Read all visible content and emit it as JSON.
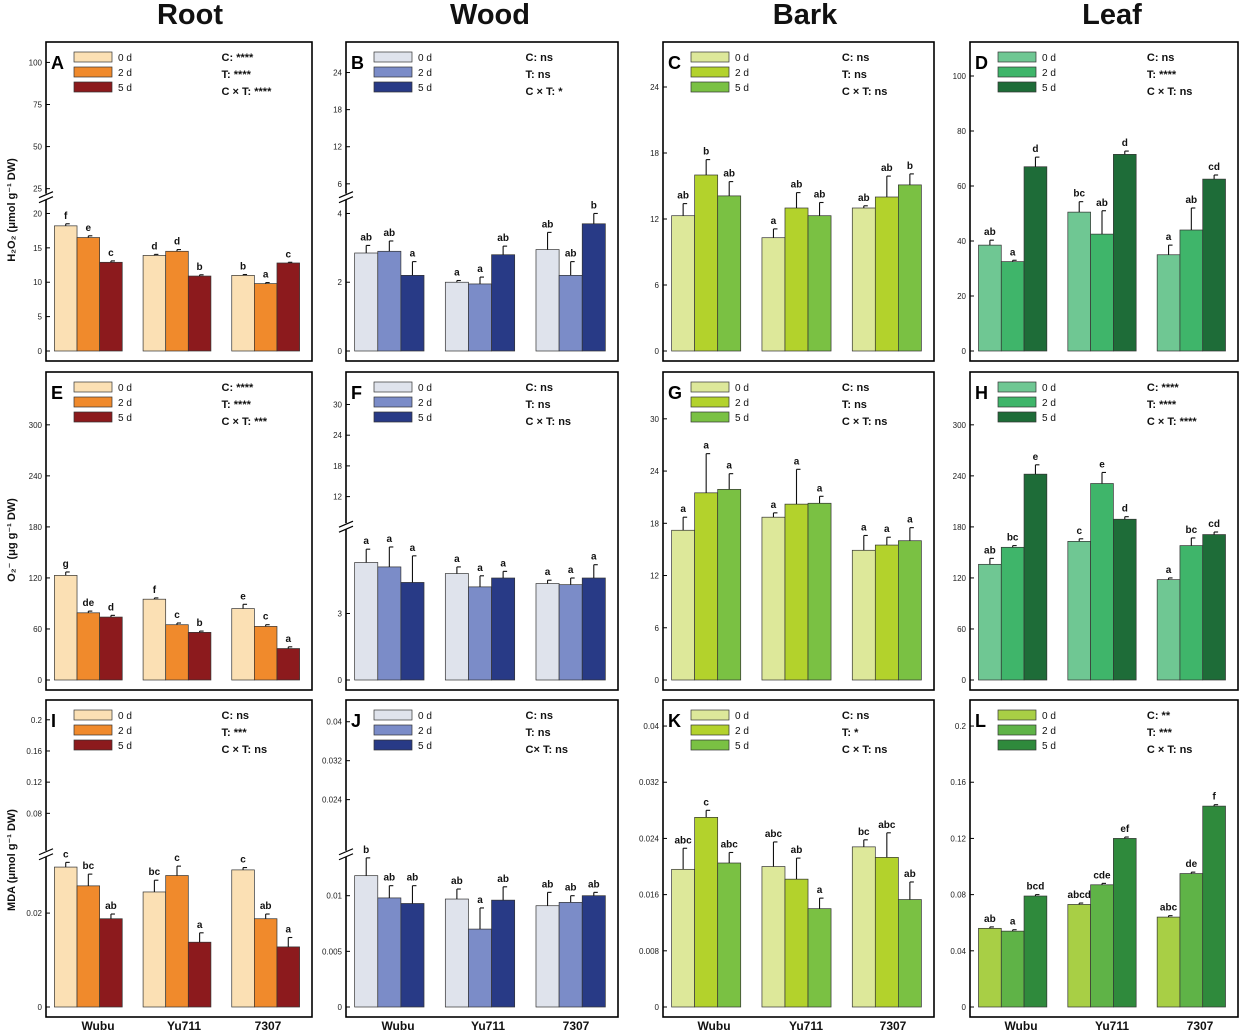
{
  "figure": {
    "column_titles": [
      "Root",
      "Wood",
      "Bark",
      "Leaf"
    ],
    "x_categories": [
      "Wubu",
      "Yu711",
      "7307"
    ],
    "row_ylabels": [
      "H₂O₂ (μmol g⁻¹ DW)",
      "O₂⁻ (μg g⁻¹ DW)",
      "MDA (μmol g⁻¹ DW)"
    ],
    "series_names": [
      "0 d",
      "2 d",
      "5 d"
    ]
  },
  "chart_data": [
    {
      "type": "bar",
      "panel": "A",
      "row": 0,
      "col": 0,
      "categories": [
        "Wubu",
        "Yu711",
        "7307"
      ],
      "series": [
        {
          "name": "0 d",
          "values": [
            18.2,
            13.9,
            11.0
          ],
          "errors": [
            0.3,
            0.15,
            0.12
          ]
        },
        {
          "name": "2 d",
          "values": [
            16.5,
            14.5,
            9.8
          ],
          "errors": [
            0.25,
            0.25,
            0.15
          ]
        },
        {
          "name": "5 d",
          "values": [
            12.9,
            10.9,
            12.8
          ],
          "errors": [
            0.2,
            0.18,
            0.1
          ]
        }
      ],
      "labels": [
        [
          "f",
          "d",
          "b"
        ],
        [
          "e",
          "d",
          "a"
        ],
        [
          "c",
          "b",
          "c"
        ]
      ],
      "stats": [
        "C: ****",
        "T: ****",
        "C × T: ****"
      ],
      "y_break": {
        "low": [
          0,
          22
        ],
        "high": [
          22,
          105
        ],
        "low_ticks": [
          0,
          5,
          10,
          15,
          20
        ],
        "high_ticks": [
          25,
          50,
          75,
          100
        ]
      },
      "colors": [
        "#fbe0b4",
        "#f08a2c",
        "#8c1a1d"
      ]
    },
    {
      "type": "bar",
      "panel": "B",
      "row": 0,
      "col": 1,
      "categories": [
        "Wubu",
        "Yu711",
        "7307"
      ],
      "series": [
        {
          "name": "0 d",
          "values": [
            2.85,
            2.0,
            2.95
          ],
          "errors": [
            0.22,
            0.05,
            0.5
          ]
        },
        {
          "name": "2 d",
          "values": [
            2.9,
            1.95,
            2.2
          ],
          "errors": [
            0.3,
            0.2,
            0.4
          ]
        },
        {
          "name": "5 d",
          "values": [
            2.2,
            2.8,
            3.7
          ],
          "errors": [
            0.4,
            0.25,
            0.3
          ]
        }
      ],
      "labels": [
        [
          "ab",
          "a",
          "ab"
        ],
        [
          "ab",
          "a",
          "ab"
        ],
        [
          "a",
          "ab",
          "b"
        ]
      ],
      "stats": [
        "C: ns",
        "T: ns",
        "C × T: *"
      ],
      "y_break": {
        "low": [
          0,
          4.4
        ],
        "high": [
          4.4,
          27
        ],
        "low_ticks": [
          0,
          2,
          4
        ],
        "high_ticks": [
          6,
          12,
          18,
          24
        ]
      },
      "colors": [
        "#dfe3ec",
        "#7b8cc8",
        "#283a86"
      ]
    },
    {
      "type": "bar",
      "panel": "C",
      "row": 0,
      "col": 2,
      "categories": [
        "Wubu",
        "Yu711",
        "7307"
      ],
      "series": [
        {
          "name": "0 d",
          "values": [
            12.3,
            10.3,
            13.0
          ],
          "errors": [
            1.1,
            0.8,
            0.2
          ]
        },
        {
          "name": "2 d",
          "values": [
            16.0,
            13.0,
            14.0
          ],
          "errors": [
            1.4,
            1.4,
            1.9
          ]
        },
        {
          "name": "5 d",
          "values": [
            14.1,
            12.3,
            15.1
          ],
          "errors": [
            1.3,
            1.2,
            1.0
          ]
        }
      ],
      "labels": [
        [
          "ab",
          "a",
          "ab"
        ],
        [
          "b",
          "ab",
          "ab"
        ],
        [
          "ab",
          "ab",
          "b"
        ]
      ],
      "stats": [
        "C: ns",
        "T: ns",
        "C × T: ns"
      ],
      "ylim": [
        0,
        27
      ],
      "yticks": [
        0,
        6,
        12,
        18,
        24
      ],
      "colors": [
        "#dde89a",
        "#b3d22c",
        "#7ac143"
      ]
    },
    {
      "type": "bar",
      "panel": "D",
      "row": 0,
      "col": 3,
      "categories": [
        "Wubu",
        "Yu711",
        "7307"
      ],
      "series": [
        {
          "name": "0 d",
          "values": [
            38.5,
            50.5,
            35.0
          ],
          "errors": [
            1.8,
            3.8,
            3.5
          ]
        },
        {
          "name": "2 d",
          "values": [
            32.5,
            42.5,
            44.0
          ],
          "errors": [
            0.5,
            8.5,
            8.0
          ]
        },
        {
          "name": "5 d",
          "values": [
            67.0,
            71.5,
            62.5
          ],
          "errors": [
            3.5,
            1.2,
            1.5
          ]
        }
      ],
      "labels": [
        [
          "ab",
          "bc",
          "a"
        ],
        [
          "a",
          "ab",
          "ab"
        ],
        [
          "d",
          "d",
          "cd"
        ]
      ],
      "stats": [
        "C: ns",
        "T: ****",
        "C × T: ns"
      ],
      "ylim": [
        0,
        108
      ],
      "yticks": [
        0,
        20,
        40,
        60,
        80,
        100
      ],
      "colors": [
        "#6fc793",
        "#3fb56a",
        "#1e6c38"
      ]
    },
    {
      "type": "bar",
      "panel": "E",
      "row": 1,
      "col": 0,
      "categories": [
        "Wubu",
        "Yu711",
        "7307"
      ],
      "series": [
        {
          "name": "0 d",
          "values": [
            123,
            95,
            84
          ],
          "errors": [
            4,
            1.5,
            5
          ]
        },
        {
          "name": "2 d",
          "values": [
            79,
            65,
            63
          ],
          "errors": [
            2,
            2,
            2
          ]
        },
        {
          "name": "5 d",
          "values": [
            74,
            56,
            37
          ],
          "errors": [
            2,
            1.5,
            2
          ]
        }
      ],
      "labels": [
        [
          "g",
          "f",
          "e"
        ],
        [
          "de",
          "c",
          "c"
        ],
        [
          "d",
          "b",
          "a"
        ]
      ],
      "stats": [
        "C: ****",
        "T: ****",
        "C × T: ***"
      ],
      "ylim": [
        0,
        348
      ],
      "yticks": [
        0,
        60,
        120,
        180,
        240,
        300
      ],
      "colors": [
        "#fbe0b4",
        "#f08a2c",
        "#8c1a1d"
      ]
    },
    {
      "type": "bar",
      "panel": "F",
      "row": 1,
      "col": 1,
      "categories": [
        "Wubu",
        "Yu711",
        "7307"
      ],
      "series": [
        {
          "name": "0 d",
          "values": [
            5.3,
            4.8,
            4.35
          ],
          "errors": [
            0.6,
            0.3,
            0.15
          ]
        },
        {
          "name": "2 d",
          "values": [
            5.1,
            4.2,
            4.3
          ],
          "errors": [
            0.9,
            0.5,
            0.3
          ]
        },
        {
          "name": "5 d",
          "values": [
            4.4,
            4.6,
            4.6
          ],
          "errors": [
            1.2,
            0.3,
            0.6
          ]
        }
      ],
      "labels": [
        [
          "a",
          "a",
          "a"
        ],
        [
          "a",
          "a",
          "a"
        ],
        [
          "a",
          "a",
          "a"
        ]
      ],
      "stats": [
        "C: ns",
        "T: ns",
        "C × T: ns"
      ],
      "y_break": {
        "low": [
          0,
          6.8
        ],
        "high": [
          6.8,
          34
        ],
        "low_ticks": [
          0,
          3
        ],
        "high_ticks": [
          12,
          18,
          24,
          30
        ]
      },
      "colors": [
        "#dfe3ec",
        "#7b8cc8",
        "#283a86"
      ]
    },
    {
      "type": "bar",
      "panel": "G",
      "row": 1,
      "col": 2,
      "categories": [
        "Wubu",
        "Yu711",
        "7307"
      ],
      "series": [
        {
          "name": "0 d",
          "values": [
            17.2,
            18.7,
            14.9
          ],
          "errors": [
            1.5,
            0.5,
            1.7
          ]
        },
        {
          "name": "2 d",
          "values": [
            21.5,
            20.2,
            15.5
          ],
          "errors": [
            4.5,
            4.0,
            0.9
          ]
        },
        {
          "name": "5 d",
          "values": [
            21.9,
            20.3,
            16.0
          ],
          "errors": [
            1.8,
            0.8,
            1.5
          ]
        }
      ],
      "labels": [
        [
          "a",
          "a",
          "a"
        ],
        [
          "a",
          "a",
          "a"
        ],
        [
          "a",
          "a",
          "a"
        ]
      ],
      "stats": [
        "C: ns",
        "T: ns",
        "C × T: ns"
      ],
      "ylim": [
        0,
        34
      ],
      "yticks": [
        0,
        6,
        12,
        18,
        24,
        30
      ],
      "colors": [
        "#dde89a",
        "#b3d22c",
        "#7ac143"
      ]
    },
    {
      "type": "bar",
      "panel": "H",
      "row": 1,
      "col": 3,
      "categories": [
        "Wubu",
        "Yu711",
        "7307"
      ],
      "series": [
        {
          "name": "0 d",
          "values": [
            136,
            163,
            118
          ],
          "errors": [
            7,
            3,
            2
          ]
        },
        {
          "name": "2 d",
          "values": [
            156,
            231,
            158
          ],
          "errors": [
            2,
            13,
            9
          ]
        },
        {
          "name": "5 d",
          "values": [
            242,
            189,
            171
          ],
          "errors": [
            11,
            3,
            3
          ]
        }
      ],
      "labels": [
        [
          "ab",
          "c",
          "a"
        ],
        [
          "bc",
          "e",
          "bc"
        ],
        [
          "e",
          "d",
          "cd"
        ]
      ],
      "stats": [
        "C: ****",
        "T: ****",
        "C × T: ****"
      ],
      "ylim": [
        0,
        348
      ],
      "yticks": [
        0,
        60,
        120,
        180,
        240,
        300
      ],
      "colors": [
        "#6fc793",
        "#3fb56a",
        "#1e6c38"
      ]
    },
    {
      "type": "bar",
      "panel": "I",
      "row": 2,
      "col": 0,
      "categories": [
        "Wubu",
        "Yu711",
        "7307"
      ],
      "series": [
        {
          "name": "0 d",
          "values": [
            0.0298,
            0.0245,
            0.0292
          ],
          "errors": [
            0.001,
            0.0025,
            0.0005
          ]
        },
        {
          "name": "2 d",
          "values": [
            0.0258,
            0.028,
            0.0188
          ],
          "errors": [
            0.0025,
            0.002,
            0.001
          ]
        },
        {
          "name": "5 d",
          "values": [
            0.0188,
            0.0138,
            0.0128
          ],
          "errors": [
            0.001,
            0.002,
            0.002
          ]
        }
      ],
      "labels": [
        [
          "c",
          "bc",
          "c"
        ],
        [
          "bc",
          "c",
          "ab"
        ],
        [
          "ab",
          "a",
          "a"
        ]
      ],
      "stats": [
        "C: ns",
        "T: ***",
        "C × T: ns"
      ],
      "y_break": {
        "low": [
          0,
          0.032
        ],
        "high": [
          0.032,
          0.21
        ],
        "low_ticks": [
          0.0,
          0.02
        ],
        "high_ticks": [
          0.08,
          0.12,
          0.16,
          0.2
        ]
      },
      "colors": [
        "#fbe0b4",
        "#f08a2c",
        "#8c1a1d"
      ]
    },
    {
      "type": "bar",
      "panel": "J",
      "row": 2,
      "col": 1,
      "categories": [
        "Wubu",
        "Yu711",
        "7307"
      ],
      "series": [
        {
          "name": "0 d",
          "values": [
            0.0118,
            0.0097,
            0.0091
          ],
          "errors": [
            0.0016,
            0.0009,
            0.0012
          ]
        },
        {
          "name": "2 d",
          "values": [
            0.0098,
            0.007,
            0.0094
          ],
          "errors": [
            0.0011,
            0.0019,
            0.0006
          ]
        },
        {
          "name": "5 d",
          "values": [
            0.0093,
            0.0096,
            0.01
          ],
          "errors": [
            0.0016,
            0.0012,
            0.0003
          ]
        }
      ],
      "labels": [
        [
          "b",
          "ab",
          "ab"
        ],
        [
          "ab",
          "a",
          "ab"
        ],
        [
          "ab",
          "ab",
          "ab"
        ]
      ],
      "stats": [
        "C: ns",
        "T: ns",
        "C× T: ns"
      ],
      "y_break": {
        "low": [
          0,
          0.0135
        ],
        "high": [
          0.0135,
          0.042
        ],
        "low_ticks": [
          0.0,
          0.005,
          0.01
        ],
        "high_ticks": [
          0.024,
          0.032,
          0.04
        ]
      },
      "colors": [
        "#dfe3ec",
        "#7b8cc8",
        "#283a86"
      ]
    },
    {
      "type": "bar",
      "panel": "K",
      "row": 2,
      "col": 2,
      "categories": [
        "Wubu",
        "Yu711",
        "7307"
      ],
      "series": [
        {
          "name": "0 d",
          "values": [
            0.0196,
            0.02,
            0.0228
          ],
          "errors": [
            0.003,
            0.0035,
            0.001
          ]
        },
        {
          "name": "2 d",
          "values": [
            0.027,
            0.0182,
            0.0213
          ],
          "errors": [
            0.001,
            0.003,
            0.0035
          ]
        },
        {
          "name": "5 d",
          "values": [
            0.0205,
            0.014,
            0.0153
          ],
          "errors": [
            0.0015,
            0.0015,
            0.0025
          ]
        }
      ],
      "labels": [
        [
          "abc",
          "abc",
          "bc"
        ],
        [
          "c",
          "ab",
          "abc"
        ],
        [
          "abc",
          "a",
          "ab"
        ]
      ],
      "stats": [
        "C: ns",
        "T: *",
        "C × T: ns"
      ],
      "ylim": [
        0,
        0.042
      ],
      "yticks": [
        0.0,
        0.008,
        0.016,
        0.024,
        0.032,
        0.04
      ],
      "colors": [
        "#dde89a",
        "#b3d22c",
        "#7ac143"
      ]
    },
    {
      "type": "bar",
      "panel": "L",
      "row": 2,
      "col": 3,
      "categories": [
        "Wubu",
        "Yu711",
        "7307"
      ],
      "series": [
        {
          "name": "0 d",
          "values": [
            0.056,
            0.073,
            0.064
          ],
          "errors": [
            0.001,
            0.001,
            0.001
          ]
        },
        {
          "name": "2 d",
          "values": [
            0.054,
            0.087,
            0.095
          ],
          "errors": [
            0.001,
            0.001,
            0.001
          ]
        },
        {
          "name": "5 d",
          "values": [
            0.079,
            0.12,
            0.143
          ],
          "errors": [
            0.001,
            0.001,
            0.001
          ]
        }
      ],
      "labels": [
        [
          "ab",
          "abcd",
          "abc"
        ],
        [
          "a",
          "cde",
          "de"
        ],
        [
          "bcd",
          "ef",
          "f"
        ]
      ],
      "stats": [
        "C: **",
        "T: ***",
        "C × T: ns"
      ],
      "ylim": [
        0,
        0.21
      ],
      "yticks": [
        0.0,
        0.04,
        0.08,
        0.12,
        0.16,
        0.2
      ],
      "colors": [
        "#a8cf45",
        "#5fb347",
        "#2f8a3c"
      ]
    }
  ]
}
